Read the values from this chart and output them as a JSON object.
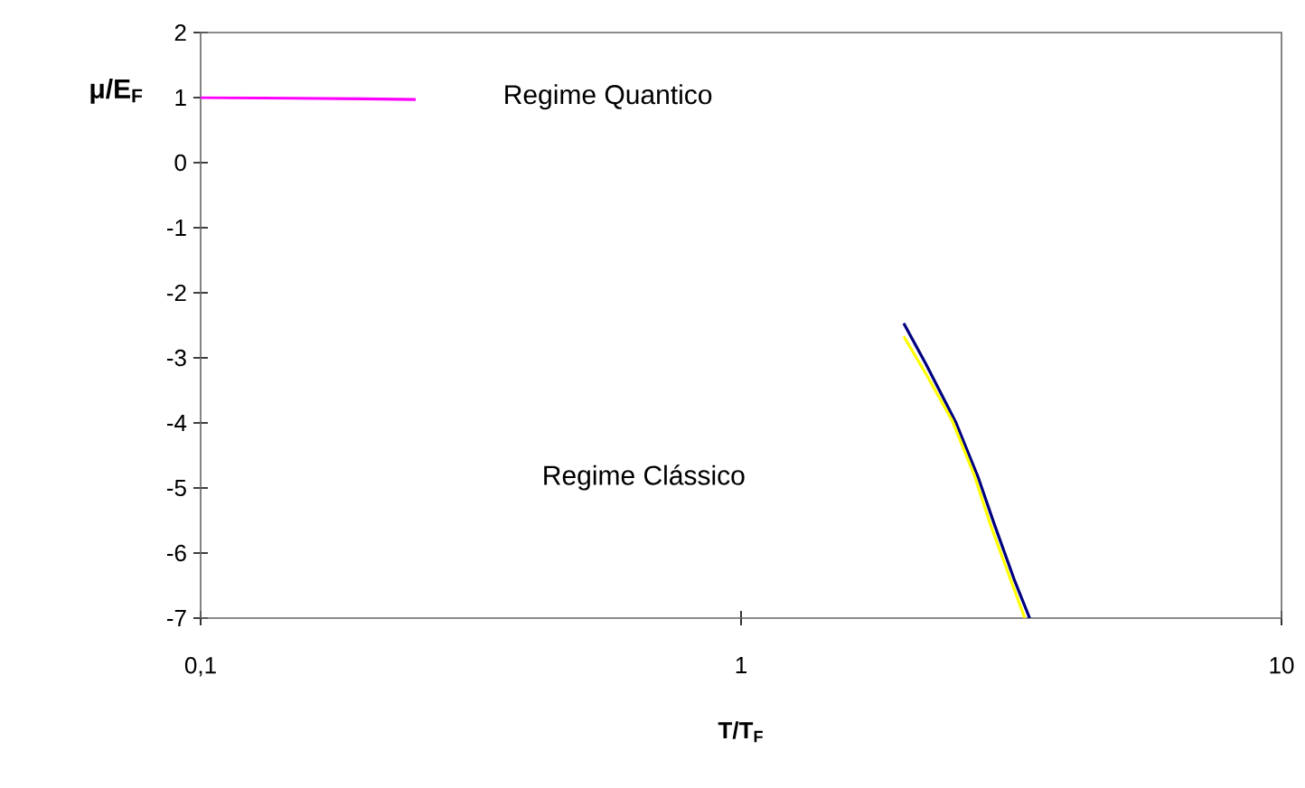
{
  "chart_data": {
    "type": "line",
    "xlabel": "T/T$_{F}$",
    "ylabel": "μ/E$_{F}$",
    "log": "x",
    "grid": false,
    "marker": "none",
    "line_style": "solid",
    "xlim": [
      0.1,
      10
    ],
    "xticks": [
      {
        "value": 0.1,
        "label": "0,1"
      },
      1,
      10
    ],
    "ylim": [
      -7,
      2
    ],
    "yticks": [
      -7,
      -6,
      -5,
      -4,
      -3,
      -2,
      -1,
      0,
      1,
      2
    ],
    "annotations": [
      "Regime Quantico",
      "Regime Clássico"
    ],
    "series": [
      {
        "color": "#ff00ff",
        "x": [
          0.1,
          0.15,
          0.2,
          0.25
        ],
        "values": [
          1.0,
          0.99,
          0.98,
          0.97
        ]
      },
      {
        "color": "#000080",
        "x": [
          2.0,
          2.2,
          2.5,
          2.75,
          2.94,
          3.2,
          3.42
        ],
        "values": [
          -2.47,
          -3.1,
          -4.0,
          -4.85,
          -5.55,
          -6.4,
          -7.0
        ]
      },
      {
        "color": "#ffff00",
        "x": [
          2.0,
          2.2,
          2.46,
          2.7,
          2.89,
          3.15,
          3.35
        ],
        "values": [
          -2.67,
          -3.25,
          -3.97,
          -4.8,
          -5.55,
          -6.4,
          -7.0
        ]
      }
    ]
  }
}
